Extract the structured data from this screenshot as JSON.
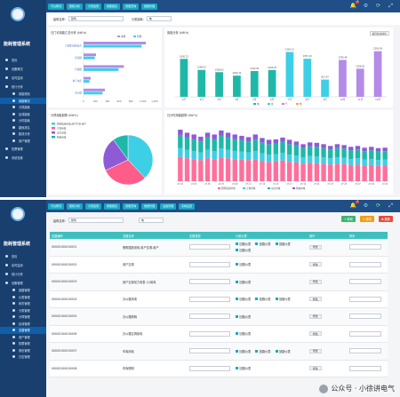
{
  "app": {
    "title": "能耗管理系统"
  },
  "top_tabs_1": [
    "平台概况",
    "能耗分析",
    "分项监测",
    "用能报表",
    "用能查询",
    "数据管理"
  ],
  "top_tabs_2": [
    "平台概况",
    "能耗分析",
    "分项监测",
    "用能报表",
    "用能查询",
    "数据管理",
    "设备管理",
    "系统设置"
  ],
  "notification_count": "4",
  "sidebar_1": [
    {
      "label": "首页"
    },
    {
      "label": "设备概况"
    },
    {
      "label": "实时监测"
    },
    {
      "label": "统计分析"
    },
    {
      "label": "用能规划",
      "sub": true
    },
    {
      "label": "用能概况",
      "sub": true,
      "active": true
    },
    {
      "label": "分项能耗",
      "sub": true
    },
    {
      "label": "区域能耗",
      "sub": true
    },
    {
      "label": "分时能耗",
      "sub": true
    },
    {
      "label": "能耗排名",
      "sub": true
    },
    {
      "label": "能效分析",
      "sub": true
    },
    {
      "label": "用户管理",
      "sub": true
    },
    {
      "label": "告警管理"
    },
    {
      "label": "系统设置"
    }
  ],
  "sidebar_2": [
    {
      "label": "首页"
    },
    {
      "label": "实时监测"
    },
    {
      "label": "统计分析"
    },
    {
      "label": "设备管理"
    },
    {
      "label": "回路管理",
      "sub": true
    },
    {
      "label": "仪表管理",
      "sub": true
    },
    {
      "label": "网关管理",
      "sub": true
    },
    {
      "label": "分类管理",
      "sub": true
    },
    {
      "label": "分项管理",
      "sub": true
    },
    {
      "label": "区域管理",
      "sub": true
    },
    {
      "label": "支路管理",
      "sub": true,
      "active": true
    },
    {
      "label": "用户管理",
      "sub": true
    },
    {
      "label": "权限管理",
      "sub": true
    },
    {
      "label": "角色管理",
      "sub": true
    },
    {
      "label": "日志管理",
      "sub": true
    }
  ],
  "filter1": {
    "label_a": "建筑名称:",
    "value_a": "建筑",
    "label_b": "分类能耗:",
    "value_b": "电"
  },
  "panels": {
    "p1_title": "日门诊用能汇总分析 (kW·h)",
    "p2_title": "用能分析 (kW·h)",
    "p2_btn": "按月份/按年份",
    "p3_title": "分项用能趋势 (kW·h)",
    "p4_title": "日分时用能趋势 (kW·h)"
  },
  "chart_data": [
    {
      "type": "bar",
      "categories": [
        "门诊医疗楼/综合",
        "住院楼",
        "行政楼",
        "地下车库",
        "办公楼"
      ],
      "series": [
        {
          "values": [
            1050,
            210,
            680,
            120,
            360
          ]
        },
        {
          "values": [
            980,
            190,
            590,
            100,
            320
          ]
        }
      ],
      "xlim": [
        0,
        1200
      ],
      "x_ticks": [
        "0",
        "200",
        "400",
        "600",
        "800",
        "1,000",
        "1,200"
      ],
      "legend": [
        "本期",
        "同期"
      ]
    },
    {
      "type": "bar",
      "categories": [
        "1月",
        "2月",
        "3月",
        "4月",
        "5月",
        "6月",
        "7月",
        "8月",
        "9月",
        "10月",
        "11月",
        "12月"
      ],
      "values": [
        1830.22,
        1298.52,
        1188.63,
        1022.22,
        1242.03,
        1294.45,
        2163.31,
        1837.1,
        831.97,
        1780.48,
        1356.82,
        2200.59
      ],
      "value_labels": [
        "1830.22",
        "1298.52",
        "1188.63",
        "1022.22",
        "1242.03",
        "1294.45",
        "2163.31",
        "1837.10",
        "831.97",
        "1780.48",
        "1356.82",
        "2200.59"
      ],
      "legend": [
        "电",
        "水",
        "气",
        "热"
      ]
    },
    {
      "type": "pie",
      "categories": [
        "照明插座用电-用户空调-用户",
        "空调用电",
        "动力用电",
        "特殊用电"
      ],
      "values": [
        38,
        30,
        22,
        10
      ],
      "colors": [
        "#3dcfe6",
        "#ff5c8a",
        "#8e5ad6",
        "#1fb8a8"
      ]
    },
    {
      "type": "bar",
      "stacked": true,
      "x": [
        "07-01",
        "07-02",
        "07-03",
        "07-04",
        "07-05",
        "07-06",
        "07-07",
        "07-08",
        "07-09",
        "07-10",
        "07-11",
        "07-12",
        "07-13",
        "07-14",
        "07-15",
        "07-16",
        "07-17",
        "07-18",
        "07-19",
        "07-20",
        "07-21",
        "07-22",
        "07-23",
        "07-24",
        "07-25",
        "07-26",
        "07-27",
        "07-28",
        "07-29",
        "07-30",
        "07-31"
      ],
      "series": [
        {
          "name": "照明插座用电",
          "values": [
            55,
            52,
            50,
            48,
            52,
            50,
            54,
            52,
            50,
            49,
            48,
            50,
            46,
            44,
            45,
            47,
            44,
            43,
            40,
            42,
            41,
            40,
            38,
            40,
            39,
            37,
            38,
            36,
            37,
            35,
            36
          ]
        },
        {
          "name": "空调用电",
          "values": [
            20,
            19,
            18,
            17,
            19,
            18,
            20,
            19,
            18,
            18,
            17,
            18,
            17,
            16,
            16,
            17,
            16,
            15,
            14,
            15,
            15,
            14,
            14,
            14,
            14,
            13,
            14,
            13,
            13,
            13,
            13
          ]
        },
        {
          "name": "动力用电",
          "values": [
            30,
            28,
            27,
            26,
            28,
            27,
            29,
            28,
            27,
            26,
            25,
            27,
            25,
            24,
            24,
            25,
            24,
            23,
            21,
            22,
            22,
            21,
            20,
            21,
            21,
            20,
            20,
            19,
            20,
            19,
            19
          ]
        },
        {
          "name": "特殊用电",
          "values": [
            12,
            11,
            11,
            10,
            11,
            11,
            12,
            11,
            11,
            10,
            10,
            11,
            10,
            10,
            10,
            10,
            10,
            9,
            9,
            9,
            9,
            9,
            8,
            9,
            8,
            8,
            8,
            8,
            8,
            8,
            8
          ]
        }
      ],
      "colors": [
        "#ff6f9c",
        "#3dcfe6",
        "#1fb8a8",
        "#8e5ad6"
      ]
    }
  ],
  "filter2": {
    "label_a": "建筑名称:",
    "value_a": "建筑",
    "value_b": "电"
  },
  "actions2": {
    "add": "+ 新增",
    "edit": "✎ 修改",
    "delete": "✖ 删除"
  },
  "table": {
    "headers": [
      "支路编码",
      "支路名称",
      "支路类型",
      "计量仪表",
      "操作",
      "排序"
    ],
    "rows": [
      {
        "code": "00000100010001",
        "name": "照明插座用电-用户空调-用户",
        "checks": [
          "回路仪表",
          "回路仪表",
          "回路仪表",
          "回路仪表"
        ],
        "op": "修改"
      },
      {
        "code": "00000100010002",
        "name": "用户空调",
        "checks": [
          "回路仪表"
        ],
        "op": "修改"
      },
      {
        "code": "00000100010003",
        "name": "用户空调动力电表 (2)用电",
        "checks": [
          "回路仪表"
        ],
        "op": "修改"
      },
      {
        "code": "00000100010004",
        "name": "办公楼用电",
        "checks": [
          "回路仪表",
          "回路仪表",
          "回路仪表"
        ],
        "op": "修改"
      },
      {
        "code": "00000100010005",
        "name": "办公楼照明",
        "checks": [
          "回路仪表"
        ],
        "op": "修改"
      },
      {
        "code": "00000100010006",
        "name": "办公楼空调用电",
        "checks": [
          "回路仪表"
        ],
        "op": "修改"
      },
      {
        "code": "00000100010007",
        "name": "车库用电",
        "checks": [
          "回路仪表",
          "回路仪表",
          "回路仪表"
        ],
        "op": "修改"
      },
      {
        "code": "00000100010008",
        "name": "车库照明",
        "checks": [
          "回路仪表"
        ],
        "op": "修改"
      }
    ]
  },
  "watermark": "公众号 · 小徐讲电气"
}
